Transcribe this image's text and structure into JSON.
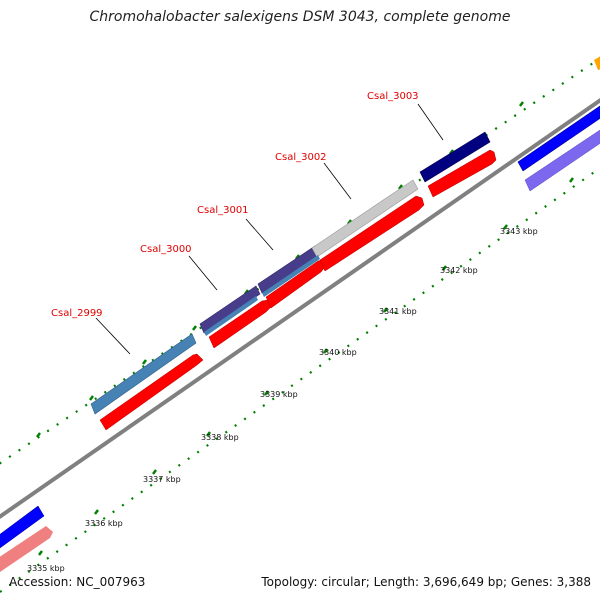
{
  "title": "Chromohalobacter salexigens DSM 3043, complete genome",
  "accession": "Accession: NC_007963",
  "summary": "Topology: circular; Length: 3,696,649 bp; Genes: 3,388",
  "tick_labels": [
    "3335 kbp",
    "3336 kbp",
    "3337 kbp",
    "3338 kbp",
    "3339 kbp",
    "3340 kbp",
    "3341 kbp",
    "3342 kbp",
    "3343 kbp"
  ],
  "gene_labels": [
    "Csal_2999",
    "Csal_3000",
    "Csal_3001",
    "Csal_3002",
    "Csal_3003"
  ],
  "colors": {
    "backbone": "#808080",
    "cds_forward": "#ff0000",
    "cds_light": "#f08080",
    "blue": "#0000ff",
    "steelblue": "#4682b4",
    "darkslate": "#483d8b",
    "navy": "#000080",
    "slateblue": "#7b68ee",
    "silver": "#c8c8c8",
    "orange": "#ffa500",
    "gene_label": "#e00000",
    "ticks": "#008000"
  }
}
